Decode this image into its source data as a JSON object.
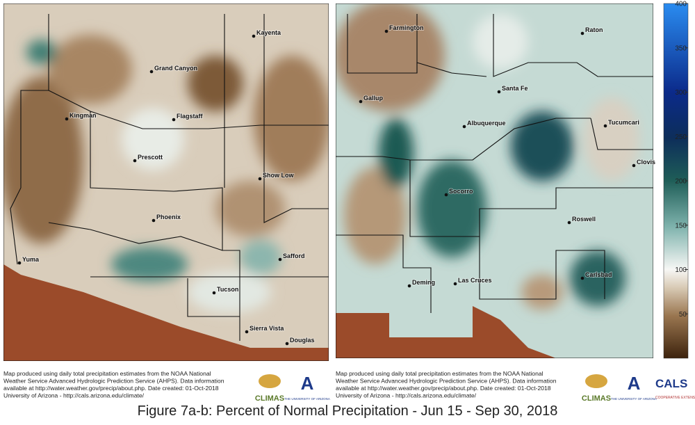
{
  "maps": [
    {
      "cities": [
        "Kayenta",
        "Grand Canyon",
        "Kingman",
        "Flagstaff",
        "Prescott",
        "Show Low",
        "Phoenix",
        "Yuma",
        "Safford",
        "Tucson",
        "Sierra Vista",
        "Douglas"
      ]
    },
    {
      "cities": [
        "Farmington",
        "Raton",
        "Gallup",
        "Santa Fe",
        "Albuquerque",
        "Tucumcari",
        "Clovis",
        "Socorro",
        "Roswell",
        "Carlsbad",
        "Deming",
        "Las Cruces"
      ]
    }
  ],
  "colorbar": {
    "lim": [
      0,
      400
    ],
    "ticks": [
      50,
      100,
      150,
      200,
      250,
      300,
      350,
      400
    ]
  },
  "footers": [
    {
      "lines": [
        "Map produced using daily total precipitation estimates from the NOAA National",
        "Weather Service Advanced Hydrologic Prediction Service (AHPS). Data information",
        "available at http://water.weather.gov/precip/about.php. Date created: 01-Oct-2018",
        "University of Arizona - http://cals.arizona.edu/climate/"
      ],
      "logos": [
        "CLIMAS",
        "THE UNIVERSITY OF ARIZONA"
      ]
    },
    {
      "lines": [
        "Map produced using daily total precipitation estimates from the NOAA National",
        "Weather Service Advanced Hydrologic Prediction Service (AHPS). Data information",
        "available at http://water.weather.gov/precip/about.php. Date created: 01-Oct-2018",
        "University of Arizona - http://cals.arizona.edu/climate/"
      ],
      "logos": [
        "CLIMAS",
        "THE UNIVERSITY OF ARIZONA",
        "CALS",
        "COOPERATIVE EXTENSION"
      ]
    }
  ],
  "caption": "Figure 7a-b: Percent of Normal Precipitation - Jun 15 - Sep 30, 2018"
}
